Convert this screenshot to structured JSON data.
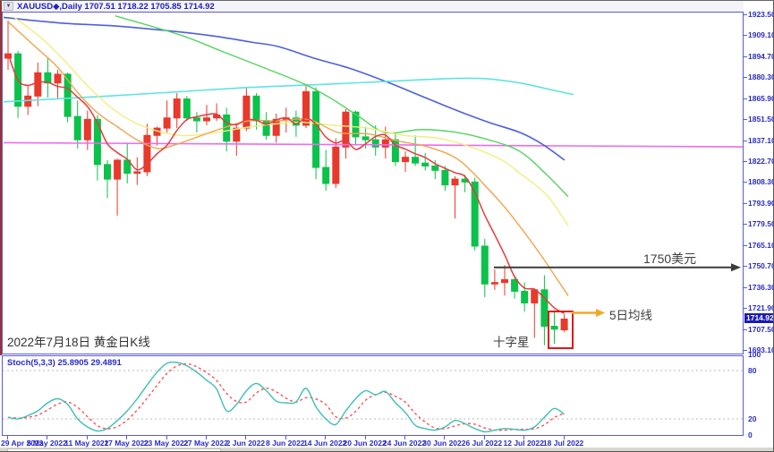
{
  "window": {
    "dropdown_icon": "▼",
    "title": "XAUUSD◆,Daily 1707.51 1718.22 1705.85 1714.92"
  },
  "main_chart": {
    "caption": "2022年7月18日 黄金日K线",
    "annotations": {
      "resistance": "1750美元",
      "ma5": "5日均线",
      "doji": "十字星"
    },
    "price_tag": "1714.92",
    "price_axis_labels": [
      "1923.50",
      "1909.10",
      "1894.70",
      "1880.30",
      "1865.90",
      "1851.50",
      "1837.10",
      "1822.70",
      "1808.30",
      "1793.90",
      "1779.50",
      "1765.10",
      "1750.70",
      "1736.30",
      "1721.90",
      "1707.50",
      "1693.10"
    ]
  },
  "indicator": {
    "label": "Stoch(5,3,3) 25.8905 29.4891",
    "scale_labels": [
      100,
      80,
      20,
      0
    ]
  },
  "time_axis_labels": [
    "29 Apr 2022",
    "5 May 2022",
    "11 May 2022",
    "17 May 2022",
    "23 May 2022",
    "27 May 2022",
    "2 Jun 2022",
    "8 Jun 2022",
    "14 Jun 2022",
    "20 Jun 2022",
    "24 Jun 2022",
    "30 Jun 2022",
    "6 Jul 2022",
    "12 Jul 2022",
    "18 Jul 2022"
  ],
  "chart_data": {
    "type": "candlestick",
    "symbol": "XAUUSD",
    "timeframe": "Daily",
    "last_ohlc": {
      "open": 1707.51,
      "high": 1718.22,
      "low": 1705.85,
      "close": 1714.92
    },
    "ylim": [
      1690.6,
      1925.3
    ],
    "x_step": 11.1,
    "x_first": 8,
    "labels_every_n_candles": 4,
    "candles_ohlc": [
      [
        1894,
        1920,
        1886,
        1897
      ],
      [
        1897,
        1899,
        1853,
        1861
      ],
      [
        1861,
        1875,
        1855,
        1868
      ],
      [
        1868,
        1891,
        1861,
        1884
      ],
      [
        1884,
        1894,
        1867,
        1877
      ],
      [
        1877,
        1886,
        1866,
        1883
      ],
      [
        1883,
        1884,
        1850,
        1854
      ],
      [
        1854,
        1865,
        1832,
        1838
      ],
      [
        1838,
        1858,
        1831,
        1852
      ],
      [
        1852,
        1855,
        1810,
        1821
      ],
      [
        1821,
        1824,
        1798,
        1811
      ],
      [
        1811,
        1825,
        1786,
        1824
      ],
      [
        1824,
        1836,
        1808,
        1815
      ],
      [
        1815,
        1826,
        1807,
        1816
      ],
      [
        1816,
        1849,
        1813,
        1841
      ],
      [
        1841,
        1847,
        1834,
        1846
      ],
      [
        1846,
        1865,
        1843,
        1853
      ],
      [
        1853,
        1870,
        1846,
        1866
      ],
      [
        1866,
        1868,
        1851,
        1853
      ],
      [
        1853,
        1857,
        1843,
        1851
      ],
      [
        1851,
        1862,
        1848,
        1853
      ],
      [
        1853,
        1863,
        1851,
        1855
      ],
      [
        1855,
        1860,
        1830,
        1837
      ],
      [
        1837,
        1849,
        1827,
        1846
      ],
      [
        1846,
        1874,
        1844,
        1868
      ],
      [
        1868,
        1870,
        1845,
        1851
      ],
      [
        1851,
        1857,
        1838,
        1841
      ],
      [
        1841,
        1856,
        1836,
        1852
      ],
      [
        1852,
        1860,
        1843,
        1853
      ],
      [
        1853,
        1858,
        1840,
        1848
      ],
      [
        1848,
        1875,
        1846,
        1871
      ],
      [
        1871,
        1874,
        1811,
        1819
      ],
      [
        1819,
        1831,
        1803,
        1808
      ],
      [
        1808,
        1839,
        1805,
        1833
      ],
      [
        1833,
        1859,
        1825,
        1857
      ],
      [
        1857,
        1858,
        1835,
        1840
      ],
      [
        1840,
        1847,
        1832,
        1838
      ],
      [
        1838,
        1848,
        1827,
        1833
      ],
      [
        1833,
        1847,
        1825,
        1838
      ],
      [
        1838,
        1843,
        1820,
        1823
      ],
      [
        1823,
        1830,
        1816,
        1826
      ],
      [
        1826,
        1841,
        1820,
        1822
      ],
      [
        1822,
        1829,
        1817,
        1820
      ],
      [
        1820,
        1824,
        1811,
        1817
      ],
      [
        1817,
        1820,
        1803,
        1807
      ],
      [
        1807,
        1813,
        1784,
        1811
      ],
      [
        1811,
        1814,
        1802,
        1809
      ],
      [
        1809,
        1812,
        1762,
        1765
      ],
      [
        1765,
        1770,
        1730,
        1739
      ],
      [
        1739,
        1749,
        1735,
        1740
      ],
      [
        1740,
        1752,
        1731,
        1742
      ],
      [
        1742,
        1745,
        1729,
        1734
      ],
      [
        1734,
        1740,
        1720,
        1726
      ],
      [
        1726,
        1736,
        1702,
        1735
      ],
      [
        1735,
        1745,
        1697,
        1710
      ],
      [
        1710,
        1721,
        1698,
        1708
      ],
      [
        1707.51,
        1718.22,
        1705.85,
        1714.92
      ]
    ],
    "moving_averages": {
      "ma5_computed_window": 5,
      "lines": [
        {
          "name": "magenta-long-ma",
          "color": "#ee6bee",
          "width": 1.6,
          "points": [
            [
              3,
              1836
            ],
            [
              430,
              1834.5
            ],
            [
              863,
              1833
            ]
          ]
        },
        {
          "name": "blue-ma",
          "color": "#4d5fe0",
          "width": 1.6,
          "points": [
            [
              3,
              1922
            ],
            [
              70,
              1918
            ],
            [
              130,
              1916
            ],
            [
              200,
              1912
            ],
            [
              240,
              1909
            ],
            [
              280,
              1905
            ],
            [
              310,
              1902
            ],
            [
              350,
              1894
            ],
            [
              390,
              1887
            ],
            [
              430,
              1878
            ],
            [
              470,
              1868
            ],
            [
              510,
              1858
            ],
            [
              545,
              1850
            ],
            [
              580,
              1843
            ],
            [
              605,
              1835
            ],
            [
              630,
              1824
            ]
          ]
        },
        {
          "name": "cyan-ma",
          "color": "#5fe3e3",
          "width": 1.6,
          "points": [
            [
              3,
              1864
            ],
            [
              60,
              1866
            ],
            [
              120,
              1868
            ],
            [
              200,
              1871
            ],
            [
              280,
              1874
            ],
            [
              360,
              1876
            ],
            [
              430,
              1878
            ],
            [
              500,
              1880
            ],
            [
              540,
              1880
            ],
            [
              580,
              1877
            ],
            [
              610,
              1873
            ],
            [
              640,
              1869
            ]
          ]
        },
        {
          "name": "green-ma",
          "color": "#55d45f",
          "width": 1.4,
          "points": [
            [
              128,
              1923
            ],
            [
              200,
              1910
            ],
            [
              250,
              1898
            ],
            [
              300,
              1886
            ],
            [
              340,
              1876
            ],
            [
              370,
              1866
            ],
            [
              400,
              1854
            ],
            [
              430,
              1843
            ],
            [
              470,
              1845
            ],
            [
              510,
              1843
            ],
            [
              545,
              1838
            ],
            [
              580,
              1830
            ],
            [
              610,
              1814
            ],
            [
              634,
              1799
            ]
          ]
        },
        {
          "name": "yellow-ma",
          "color": "#f2ee7e",
          "width": 1.4,
          "points": [
            [
              15,
              1922
            ],
            [
              45,
              1908
            ],
            [
              70,
              1893
            ],
            [
              100,
              1873
            ],
            [
              130,
              1857
            ],
            [
              160,
              1847
            ],
            [
              200,
              1841
            ],
            [
              240,
              1843
            ],
            [
              280,
              1847
            ],
            [
              330,
              1850
            ],
            [
              370,
              1848
            ],
            [
              410,
              1846
            ],
            [
              450,
              1841
            ],
            [
              490,
              1839
            ],
            [
              530,
              1832
            ],
            [
              560,
              1824
            ],
            [
              580,
              1815
            ],
            [
              610,
              1800
            ],
            [
              634,
              1779
            ]
          ]
        },
        {
          "name": "orange-ma10",
          "color": "#f0a44c",
          "width": 1.4,
          "points": [
            [
              8,
              1919
            ],
            [
              40,
              1901
            ],
            [
              63,
              1888
            ],
            [
              85,
              1871
            ],
            [
              107,
              1857
            ],
            [
              130,
              1847
            ],
            [
              152,
              1838
            ],
            [
              175,
              1832
            ],
            [
              197,
              1835
            ],
            [
              243,
              1845
            ],
            [
              277,
              1851
            ],
            [
              310,
              1851
            ],
            [
              344,
              1852
            ],
            [
              377,
              1843
            ],
            [
              411,
              1842
            ],
            [
              445,
              1837
            ],
            [
              478,
              1833
            ],
            [
              512,
              1824
            ],
            [
              545,
              1804
            ],
            [
              568,
              1788
            ],
            [
              601,
              1761
            ],
            [
              623,
              1741
            ],
            [
              634,
              1731
            ]
          ]
        }
      ],
      "ma5_color": "#e23d3d"
    },
    "stochastic": {
      "k_values": [
        22,
        20,
        24,
        30,
        40,
        45,
        38,
        20,
        10,
        5,
        8,
        18,
        30,
        45,
        62,
        78,
        89,
        90,
        86,
        78,
        68,
        57,
        30,
        38,
        55,
        64,
        55,
        42,
        40,
        41,
        58,
        35,
        20,
        13,
        30,
        45,
        55,
        50,
        54,
        40,
        28,
        12,
        8,
        6,
        10,
        18,
        14,
        8,
        4,
        6,
        8,
        7,
        6,
        10,
        22,
        33,
        25.89
      ],
      "d_smoothing": 3,
      "k_color": "#3fbfb3",
      "d_color": "#ff5252",
      "levels": [
        80,
        20
      ],
      "range": [
        0,
        100
      ]
    },
    "colors": {
      "up_candle": "#e8392b",
      "down_candle": "#0bc24a",
      "arrow_dark": "#3c3c3c",
      "arrow_orange": "#f5a623",
      "highlight_box": "#e01818",
      "tag_bg": "#1c1cb0",
      "axis_text": "#2a2ac8",
      "frame": "#5b5bd6"
    },
    "drawn_objects": {
      "resistance_arrow": {
        "y_price": 1750.4,
        "x_from": 551,
        "x_to": 827
      },
      "ma5_arrow": {
        "y": 347.5,
        "x_from": 638,
        "x_to": 675
      },
      "doji_box": {
        "x": 612,
        "y": 346,
        "w": 27,
        "h": 41
      }
    }
  }
}
